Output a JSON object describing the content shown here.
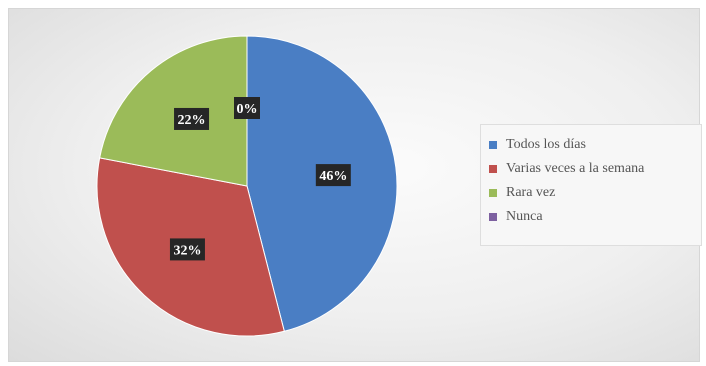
{
  "chart_data": {
    "type": "pie",
    "slices": [
      {
        "label": "Todos los días",
        "value": 46,
        "data_label": "46%",
        "color": "#4a7ec4"
      },
      {
        "label": "Varias veces a la semana",
        "value": 32,
        "data_label": "32%",
        "color": "#c0504d"
      },
      {
        "label": "Rara vez",
        "value": 22,
        "data_label": "22%",
        "color": "#9bbb59"
      },
      {
        "label": "Nunca",
        "value": 0,
        "data_label": "0%",
        "color": "#7d60a0"
      }
    ],
    "legend_position": "right",
    "title": ""
  }
}
